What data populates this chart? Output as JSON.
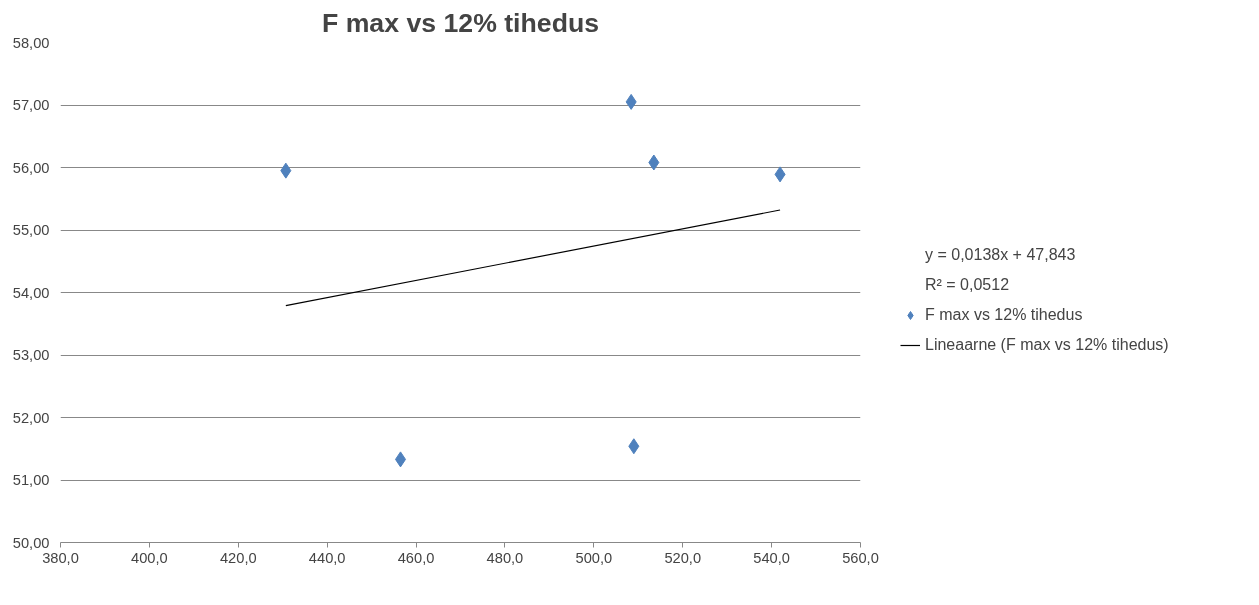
{
  "chart_data": {
    "type": "scatter",
    "title": "F max vs 12% tihedus",
    "series": [
      {
        "name": "F max vs 12% tihedus",
        "color": "#4f81bd",
        "marker": "diamond",
        "x": [
          430.7,
          456.5,
          508.4,
          509.0,
          513.5,
          541.9
        ],
        "values": [
          55.95,
          51.33,
          57.05,
          51.54,
          56.08,
          55.89
        ]
      },
      {
        "name": "Lineaarne (F max vs 12% tihedus)",
        "type": "line",
        "color": "#000000",
        "line_style": "solid",
        "marker": "none",
        "x": [
          430.7,
          541.9
        ],
        "values": [
          53.79,
          55.32
        ]
      }
    ],
    "annotations": [
      "y = 0,0138x + 47,843",
      "R² = 0,0512"
    ],
    "xlim": [
      380,
      560
    ],
    "ylim": [
      50,
      58
    ],
    "xticks": [
      {
        "value": 380,
        "label": "380,0"
      },
      {
        "value": 400,
        "label": "400,0"
      },
      {
        "value": 420,
        "label": "420,0"
      },
      {
        "value": 440,
        "label": "440,0"
      },
      {
        "value": 460,
        "label": "460,0"
      },
      {
        "value": 480,
        "label": "480,0"
      },
      {
        "value": 500,
        "label": "500,0"
      },
      {
        "value": 520,
        "label": "520,0"
      },
      {
        "value": 540,
        "label": "540,0"
      },
      {
        "value": 560,
        "label": "560,0"
      }
    ],
    "yticks": [
      {
        "value": 50,
        "label": "50,00"
      },
      {
        "value": 51,
        "label": "51,00"
      },
      {
        "value": 52,
        "label": "52,00"
      },
      {
        "value": 53,
        "label": "53,00"
      },
      {
        "value": 54,
        "label": "54,00"
      },
      {
        "value": 55,
        "label": "55,00"
      },
      {
        "value": 56,
        "label": "56,00"
      },
      {
        "value": 57,
        "label": "57,00"
      },
      {
        "value": 58,
        "label": "58,00"
      }
    ],
    "grid": "y",
    "legend": "right"
  }
}
